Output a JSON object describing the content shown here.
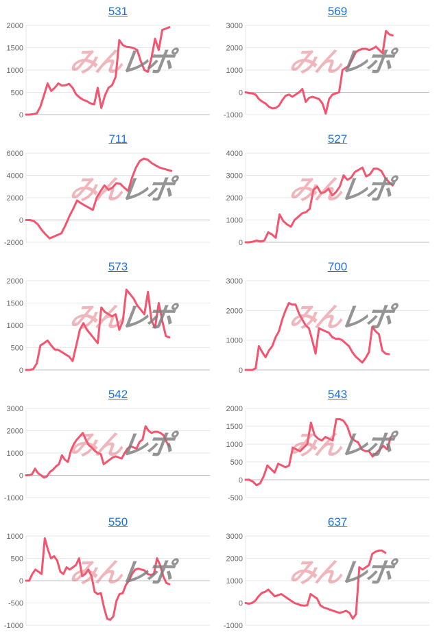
{
  "watermark": {
    "pink_text": "みん",
    "gray_text": "レポ"
  },
  "colors": {
    "line": "#f4546e",
    "grid": "#e7e7e7",
    "zero_line": "#bdbdbd",
    "tick_label": "#666666",
    "title_link": "#1a73e8"
  },
  "chart_data": [
    {
      "type": "line",
      "title": "531",
      "ylim": [
        0,
        2000
      ],
      "yticks": [
        2000,
        1500,
        1000,
        500,
        0
      ],
      "x_extent": 0.78,
      "grid": true,
      "xlabel": "",
      "ylabel": "",
      "values": [
        0,
        0,
        10,
        30,
        180,
        430,
        700,
        530,
        600,
        700,
        650,
        660,
        690,
        600,
        450,
        380,
        330,
        300,
        250,
        230,
        600,
        150,
        430,
        600,
        660,
        850,
        1670,
        1560,
        1520,
        1510,
        1490,
        1450,
        1200,
        1000,
        960,
        1280,
        1700,
        1450,
        1900,
        1930,
        1960
      ]
    },
    {
      "type": "line",
      "title": "569",
      "ylim": [
        -1000,
        3000
      ],
      "yticks": [
        3000,
        2000,
        1000,
        0,
        -1000
      ],
      "x_extent": 0.8,
      "grid": true,
      "xlabel": "",
      "ylabel": "",
      "values": [
        0,
        -30,
        -50,
        -100,
        -300,
        -420,
        -500,
        -650,
        -720,
        -700,
        -600,
        -350,
        -150,
        -100,
        -200,
        -100,
        0,
        150,
        -430,
        -250,
        -200,
        -250,
        -300,
        -500,
        -950,
        -300,
        -100,
        -50,
        0,
        1000,
        1100,
        1200,
        1500,
        1800,
        1900,
        1950,
        1950,
        1900,
        1950,
        2050,
        1900,
        1750,
        2750,
        2600,
        2550
      ]
    },
    {
      "type": "line",
      "title": "711",
      "ylim": [
        -2000,
        6000
      ],
      "yticks": [
        6000,
        4000,
        2000,
        0,
        -2000
      ],
      "x_extent": 0.79,
      "grid": true,
      "xlabel": "",
      "ylabel": "",
      "values": [
        0,
        0,
        -100,
        -400,
        -900,
        -1300,
        -1650,
        -1500,
        -1350,
        -1200,
        -500,
        300,
        1000,
        1750,
        1500,
        1300,
        1100,
        900,
        2000,
        2600,
        3100,
        2700,
        2900,
        3300,
        3250,
        2900,
        2600,
        3800,
        4700,
        5300,
        5500,
        5400,
        5100,
        4900,
        4700,
        4600,
        4500,
        4400
      ]
    },
    {
      "type": "line",
      "title": "527",
      "ylim": [
        0,
        4000
      ],
      "yticks": [
        4000,
        3000,
        2000,
        1000,
        0
      ],
      "x_extent": 0.8,
      "grid": true,
      "xlabel": "",
      "ylabel": "",
      "values": [
        0,
        0,
        30,
        80,
        30,
        80,
        450,
        350,
        200,
        1250,
        950,
        800,
        700,
        1000,
        1150,
        1300,
        1350,
        1500,
        2350,
        2500,
        2200,
        2250,
        2400,
        2100,
        2250,
        2500,
        3000,
        2800,
        2900,
        3150,
        3250,
        3350,
        2950,
        3050,
        3300,
        3300,
        3200,
        2900,
        2700,
        2550
      ]
    },
    {
      "type": "line",
      "title": "573",
      "ylim": [
        0,
        2000
      ],
      "yticks": [
        2000,
        1500,
        1000,
        500,
        0
      ],
      "x_extent": 0.78,
      "grid": true,
      "xlabel": "",
      "ylabel": "",
      "values": [
        0,
        0,
        20,
        150,
        550,
        600,
        660,
        550,
        460,
        450,
        400,
        350,
        300,
        200,
        550,
        900,
        1050,
        900,
        800,
        700,
        600,
        1400,
        1300,
        1250,
        1200,
        1250,
        900,
        1100,
        1800,
        1700,
        1600,
        1450,
        1350,
        1250,
        1750,
        1100,
        950,
        1500,
        1100,
        760,
        730
      ]
    },
    {
      "type": "line",
      "title": "700",
      "ylim": [
        0,
        3000
      ],
      "yticks": [
        3000,
        2000,
        1000,
        0
      ],
      "x_extent": 0.78,
      "grid": true,
      "xlabel": "",
      "ylabel": "",
      "values": [
        0,
        0,
        0,
        50,
        800,
        600,
        430,
        650,
        800,
        1100,
        1300,
        1700,
        2000,
        2250,
        2200,
        2200,
        1900,
        1700,
        1500,
        1400,
        1000,
        550,
        1400,
        1350,
        1300,
        1250,
        1100,
        1050,
        1050,
        1000,
        900,
        800,
        600,
        450,
        350,
        250,
        400,
        600,
        1450,
        1300,
        1200,
        650,
        550,
        530
      ]
    },
    {
      "type": "line",
      "title": "542",
      "ylim": [
        -1000,
        3000
      ],
      "yticks": [
        3000,
        2000,
        1000,
        0,
        -1000
      ],
      "x_extent": 0.78,
      "grid": true,
      "xlabel": "",
      "ylabel": "",
      "values": [
        0,
        0,
        50,
        300,
        100,
        0,
        -100,
        -50,
        150,
        250,
        400,
        500,
        900,
        700,
        600,
        1100,
        1400,
        1600,
        1750,
        1900,
        1600,
        1350,
        1250,
        1100,
        1000,
        950,
        500,
        600,
        700,
        800,
        850,
        800,
        750,
        1000,
        1200,
        1300,
        1250,
        1200,
        1500,
        1600,
        2200,
        2000,
        1900,
        1950,
        1950,
        1900,
        1800,
        1500,
        1300
      ]
    },
    {
      "type": "line",
      "title": "543",
      "ylim": [
        -500,
        2000
      ],
      "yticks": [
        2000,
        1500,
        1000,
        500,
        0,
        -500
      ],
      "x_extent": 0.79,
      "grid": true,
      "xlabel": "",
      "ylabel": "",
      "values": [
        0,
        0,
        -50,
        -150,
        -100,
        100,
        400,
        300,
        200,
        450,
        400,
        350,
        400,
        900,
        850,
        800,
        900,
        1000,
        1600,
        1250,
        1150,
        1100,
        1200,
        1150,
        1100,
        1700,
        1700,
        1650,
        1500,
        1200,
        1100,
        1050,
        850,
        800,
        800,
        650,
        750,
        850,
        950,
        850,
        1200
      ]
    },
    {
      "type": "line",
      "title": "550",
      "ylim": [
        -1000,
        1000
      ],
      "yticks": [
        1000,
        500,
        0,
        -500,
        -1000
      ],
      "x_extent": 0.78,
      "grid": true,
      "xlabel": "",
      "ylabel": "",
      "values": [
        0,
        0,
        150,
        250,
        200,
        150,
        950,
        700,
        500,
        550,
        450,
        200,
        150,
        300,
        250,
        300,
        350,
        500,
        100,
        150,
        250,
        100,
        -250,
        -300,
        -280,
        -600,
        -850,
        -880,
        -800,
        -450,
        -300,
        -280,
        -100,
        0,
        150,
        250,
        270,
        250,
        230,
        150,
        130,
        150,
        500,
        350,
        100,
        -50,
        -80
      ]
    },
    {
      "type": "line",
      "title": "637",
      "ylim": [
        -1000,
        3000
      ],
      "yticks": [
        3000,
        2000,
        1000,
        0,
        -1000
      ],
      "x_extent": 0.76,
      "grid": true,
      "xlabel": "",
      "ylabel": "",
      "values": [
        0,
        -30,
        0,
        100,
        300,
        450,
        500,
        600,
        450,
        300,
        350,
        400,
        300,
        200,
        100,
        0,
        -50,
        -100,
        -120,
        -100,
        400,
        300,
        200,
        -100,
        -200,
        -250,
        -300,
        -350,
        -400,
        -450,
        -400,
        -350,
        -450,
        -700,
        -500,
        1600,
        1500,
        1600,
        1700,
        2200,
        2300,
        2350,
        2350,
        2250
      ]
    }
  ]
}
